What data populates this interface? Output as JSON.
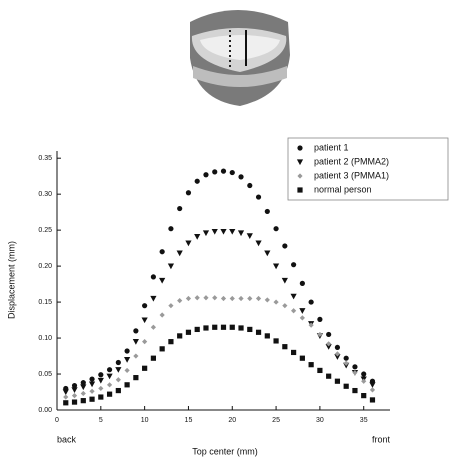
{
  "chart_data": {
    "type": "scatter",
    "x_label": "Top center (mm)",
    "y_label": "Displacement (mm)",
    "annotations": [
      "back",
      "front"
    ],
    "x": [
      1,
      2,
      3,
      4,
      5,
      6,
      7,
      8,
      9,
      10,
      11,
      12,
      13,
      14,
      15,
      16,
      17,
      18,
      19,
      20,
      21,
      22,
      23,
      24,
      25,
      26,
      27,
      28,
      29,
      30,
      31,
      32,
      33,
      34,
      35,
      36
    ],
    "series": [
      {
        "name": "patient 1",
        "color": "#111111",
        "marker": "circle",
        "values": [
          0.03,
          0.034,
          0.038,
          0.043,
          0.049,
          0.056,
          0.066,
          0.082,
          0.11,
          0.145,
          0.185,
          0.22,
          0.252,
          0.28,
          0.302,
          0.318,
          0.327,
          0.331,
          0.332,
          0.33,
          0.324,
          0.312,
          0.296,
          0.276,
          0.252,
          0.228,
          0.202,
          0.176,
          0.15,
          0.126,
          0.105,
          0.087,
          0.072,
          0.06,
          0.05,
          0.04
        ]
      },
      {
        "name": "patient 2 (PMMA2)",
        "color": "#111111",
        "marker": "triangle-down",
        "values": [
          0.025,
          0.028,
          0.032,
          0.036,
          0.041,
          0.047,
          0.056,
          0.07,
          0.095,
          0.125,
          0.155,
          0.18,
          0.2,
          0.218,
          0.232,
          0.241,
          0.246,
          0.248,
          0.248,
          0.248,
          0.246,
          0.242,
          0.232,
          0.218,
          0.2,
          0.18,
          0.158,
          0.138,
          0.12,
          0.103,
          0.088,
          0.074,
          0.062,
          0.052,
          0.043,
          0.035
        ]
      },
      {
        "name": "patient 3 (PMMA1)",
        "color": "#9a9a9a",
        "marker": "diamond",
        "values": [
          0.018,
          0.02,
          0.023,
          0.026,
          0.03,
          0.035,
          0.042,
          0.055,
          0.075,
          0.095,
          0.115,
          0.132,
          0.145,
          0.152,
          0.155,
          0.156,
          0.156,
          0.156,
          0.155,
          0.155,
          0.155,
          0.155,
          0.155,
          0.153,
          0.15,
          0.145,
          0.138,
          0.128,
          0.118,
          0.105,
          0.092,
          0.078,
          0.065,
          0.052,
          0.04,
          0.028
        ]
      },
      {
        "name": "normal person",
        "color": "#111111",
        "marker": "square",
        "values": [
          0.01,
          0.011,
          0.013,
          0.015,
          0.018,
          0.022,
          0.027,
          0.035,
          0.045,
          0.058,
          0.072,
          0.085,
          0.095,
          0.103,
          0.108,
          0.112,
          0.114,
          0.115,
          0.115,
          0.115,
          0.114,
          0.112,
          0.108,
          0.103,
          0.096,
          0.088,
          0.08,
          0.072,
          0.063,
          0.055,
          0.047,
          0.04,
          0.033,
          0.027,
          0.02,
          0.014
        ]
      }
    ],
    "xlim": [
      0,
      38
    ],
    "xticks": [
      0,
      5,
      10,
      15,
      20,
      25,
      30,
      35
    ],
    "ylim": [
      0,
      0.36
    ],
    "yticks": [
      {
        "value": 0,
        "label": "0.00"
      },
      {
        "value": 0.05,
        "label": "0.05"
      },
      {
        "value": 0.1,
        "label": "0.10"
      },
      {
        "value": 0.15,
        "label": "0.15"
      },
      {
        "value": 0.2,
        "label": "0.20"
      },
      {
        "value": 0.25,
        "label": "0.25"
      },
      {
        "value": 0.3,
        "label": "0.30"
      },
      {
        "value": 0.35,
        "label": "0.35"
      }
    ],
    "legend": "upper right",
    "grid": false
  }
}
